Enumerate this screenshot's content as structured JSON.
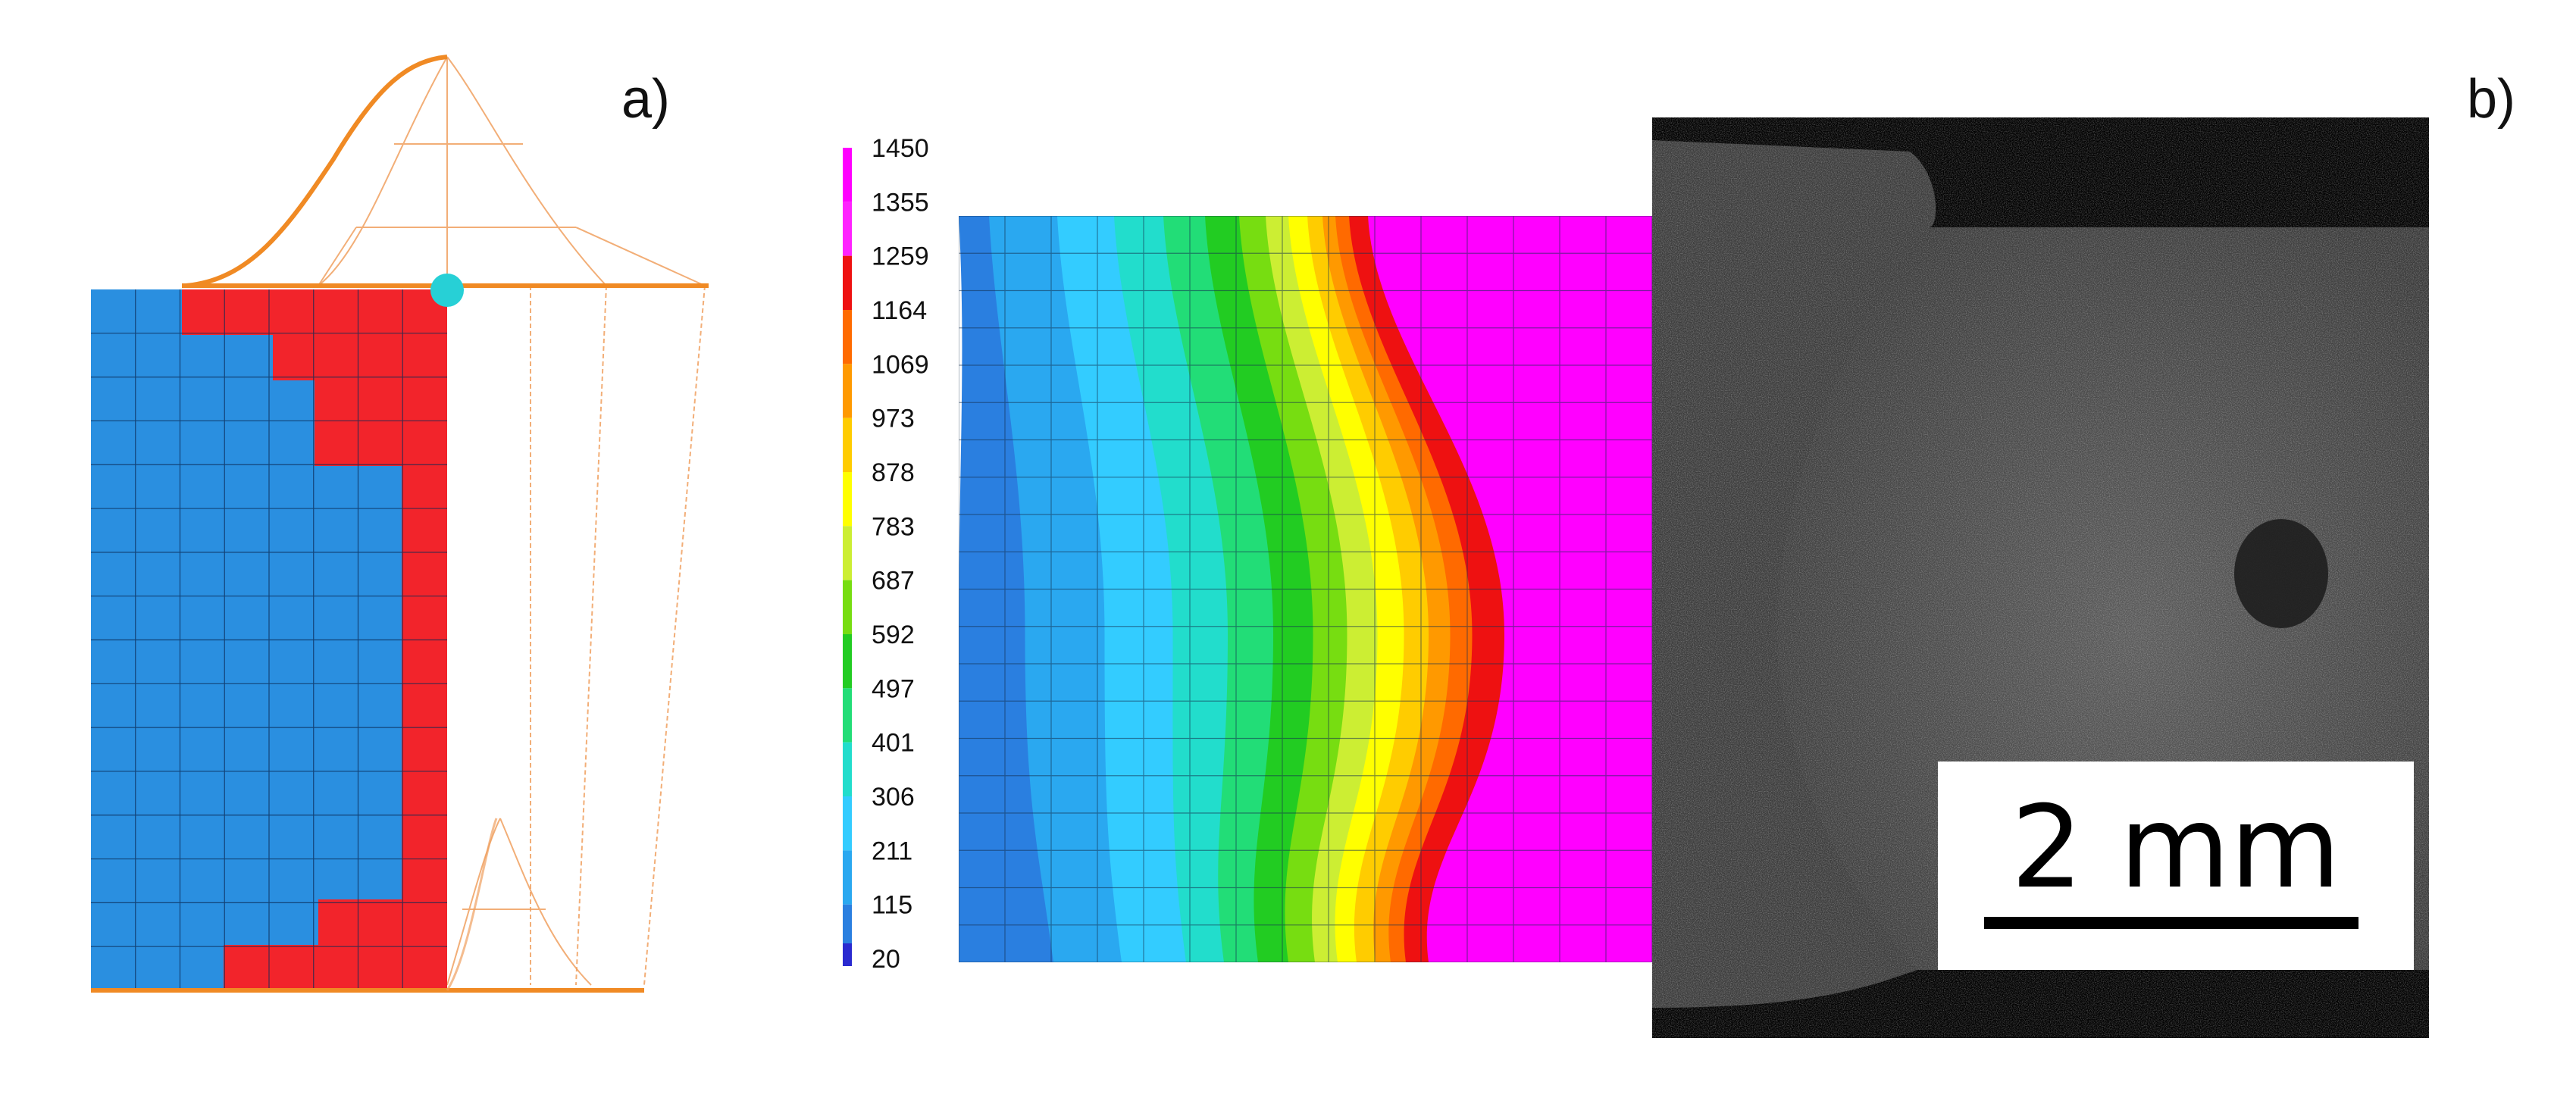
{
  "panel_a": {
    "label": "a)",
    "colors": {
      "unmelted": "#2A8FE0",
      "melted": "#F2242B",
      "heat_source": "#F08A24",
      "marker": "#27D0D6"
    }
  },
  "panel_b": {
    "label": "b)",
    "legend": {
      "values": [
        "1450",
        "1355",
        "1259",
        "1164",
        "1069",
        "973",
        "878",
        "783",
        "687",
        "592",
        "497",
        "401",
        "306",
        "211",
        "115",
        "20"
      ],
      "colors": [
        "#FF00FF",
        "#FF22FF",
        "#EE1111",
        "#FF6A00",
        "#FF9900",
        "#FFCC00",
        "#FFFF00",
        "#CCEE33",
        "#77DD11",
        "#22CC22",
        "#22DD77",
        "#22DDCC",
        "#33CCFF",
        "#2AA8F0",
        "#2A7FE0",
        "#2A2AD0"
      ]
    },
    "micrograph": {
      "scale_bar_label": "2 mm"
    }
  }
}
